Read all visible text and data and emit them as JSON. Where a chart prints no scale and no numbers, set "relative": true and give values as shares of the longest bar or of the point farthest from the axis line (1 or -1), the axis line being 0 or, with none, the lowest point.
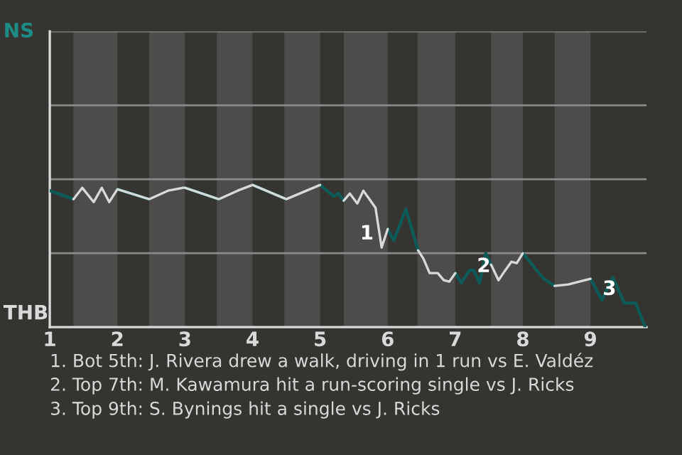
{
  "chart_data": {
    "type": "line",
    "relative": true,
    "x": [
      1.0,
      1.35,
      1.48,
      1.65,
      1.77,
      1.88,
      2.0,
      2.47,
      2.75,
      2.97,
      3.0,
      3.5,
      3.78,
      4.0,
      4.5,
      4.75,
      5.0,
      5.2,
      5.27,
      5.35,
      5.44,
      5.55,
      5.64,
      5.82,
      5.91,
      6.0,
      6.09,
      6.27,
      6.45,
      6.53,
      6.62,
      6.74,
      6.83,
      6.91,
      7.0,
      7.09,
      7.21,
      7.27,
      7.36,
      7.45,
      7.53,
      7.64,
      7.74,
      7.83,
      7.91,
      8.0,
      8.17,
      8.31,
      8.47,
      8.67,
      9.0,
      9.17,
      9.33,
      9.5,
      9.67,
      9.81
    ],
    "series": [
      {
        "color": "#0d5a57",
        "values": [
          0.96,
          0.9,
          null,
          null,
          null,
          null,
          0.97,
          0.9,
          null,
          null,
          0.98,
          0.9,
          null,
          1,
          0.9,
          null,
          1,
          0.92,
          0.94,
          0.89,
          null,
          null,
          null,
          null,
          null,
          0.69,
          0.61,
          0.83,
          0.54,
          null,
          null,
          null,
          null,
          null,
          0.38,
          0.31,
          0.4,
          0.4,
          0.31,
          0.52,
          0.44,
          null,
          null,
          null,
          null,
          0.52,
          0.42,
          0.34,
          0.29,
          null,
          0.34,
          0.19,
          0.35,
          0.17,
          0.17,
          0
        ]
      },
      {
        "color": "#d9d9d9",
        "values": [
          null,
          0.9,
          0.98,
          0.88,
          0.98,
          0.88,
          0.97,
          0.9,
          0.96,
          0.98,
          0.98,
          0.9,
          0.96,
          1,
          0.9,
          0.95,
          1,
          null,
          null,
          0.89,
          0.94,
          0.87,
          0.96,
          0.84,
          0.56,
          0.69,
          null,
          null,
          0.54,
          0.48,
          0.38,
          0.38,
          0.33,
          0.32,
          0.38,
          null,
          null,
          null,
          null,
          null,
          0.44,
          0.33,
          0.4,
          0.46,
          0.45,
          0.52,
          null,
          null,
          0.29,
          0.3,
          0.34,
          null,
          null,
          null,
          null,
          null
        ]
      }
    ],
    "xlim": [
      1,
      9.83
    ],
    "xticks": [
      1,
      2,
      3,
      4,
      5,
      6,
      7,
      8,
      9
    ],
    "marker": "none",
    "line_style": "solid",
    "ref_lines": [
      {
        "axis": "y",
        "value": 0.52,
        "color": "#8a8a8a"
      },
      {
        "axis": "y",
        "value": 1.04,
        "color": "#8a8a8a"
      },
      {
        "axis": "y",
        "value": 1.56,
        "color": "#8a8a8a"
      },
      {
        "axis": "y",
        "value": 2.08,
        "color": "#8a8a8a"
      }
    ],
    "bands": [
      {
        "axis": "x",
        "from": 1.35,
        "to": 2,
        "color": "#4d4c4a"
      },
      {
        "axis": "x",
        "from": 2.47,
        "to": 3,
        "color": "#4d4c4a"
      },
      {
        "axis": "x",
        "from": 3.47,
        "to": 4,
        "color": "#4d4c4a"
      },
      {
        "axis": "x",
        "from": 4.47,
        "to": 5,
        "color": "#4d4c4a"
      },
      {
        "axis": "x",
        "from": 5.35,
        "to": 6,
        "color": "#4d4c4a"
      },
      {
        "axis": "x",
        "from": 6.44,
        "to": 7,
        "color": "#4d4c4a"
      },
      {
        "axis": "x",
        "from": 7.53,
        "to": 8,
        "color": "#4d4c4a"
      },
      {
        "axis": "x",
        "from": 8.47,
        "to": 9,
        "color": "#4d4c4a"
      }
    ],
    "annotations": [
      "NS",
      "THB",
      {
        "text": "1",
        "x": 5.91,
        "y": 0.56
      },
      {
        "text": "2",
        "x": 7.64,
        "y": 0.33
      },
      {
        "text": "3",
        "x": 9.5,
        "y": 0.17
      },
      "1. Bot 5th: J. Rivera drew a walk, driving in 1 run vs E. Valdéz",
      "2. Top 7th: M. Kawamura hit a run-scoring single vs J. Ricks",
      "3. Top 9th: S. Bynings hit a single vs J. Ricks"
    ]
  }
}
